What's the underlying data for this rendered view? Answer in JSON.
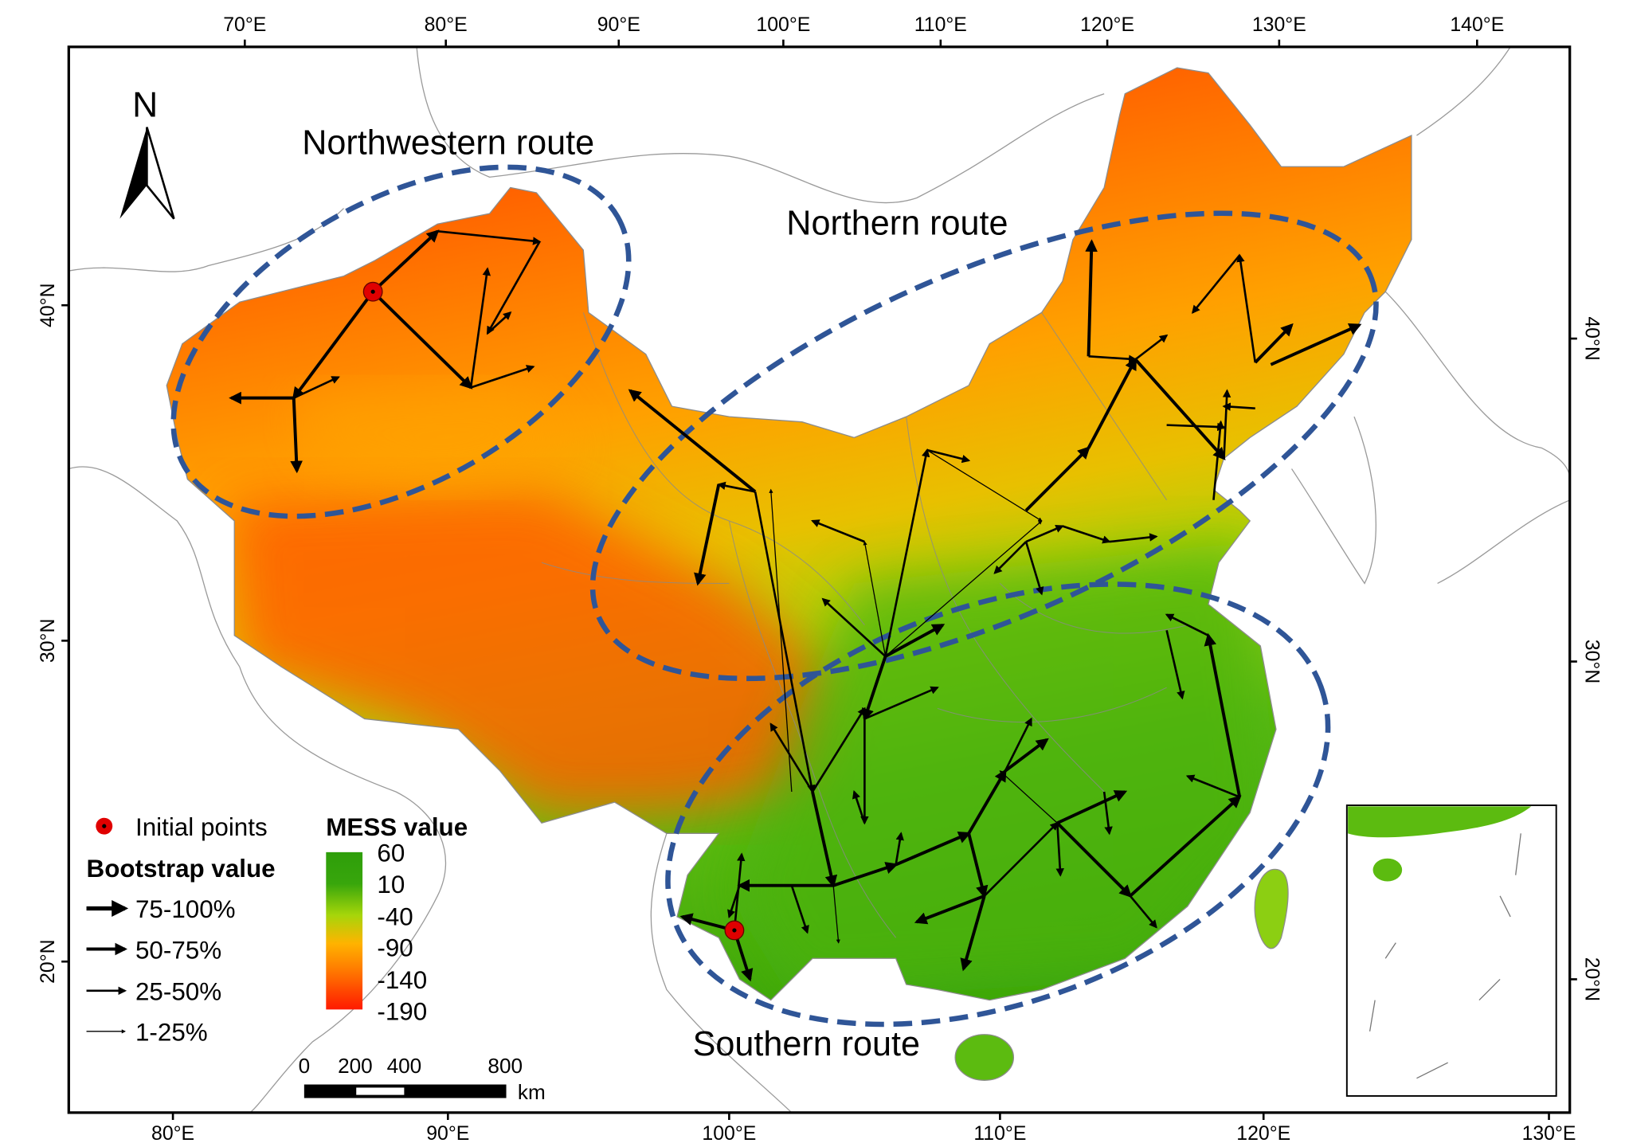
{
  "map": {
    "north_label": "N",
    "routes": {
      "northwestern": "Northwestern route",
      "northern": "Northern route",
      "southern": "Southern route"
    },
    "top_axis_ticks": [
      "70°E",
      "80°E",
      "90°E",
      "100°E",
      "110°E",
      "120°E",
      "130°E",
      "140°E"
    ],
    "bottom_axis_ticks": [
      "80°E",
      "90°E",
      "100°E",
      "110°E",
      "120°E",
      "130°E"
    ],
    "left_axis_ticks": [
      "40°N",
      "30°N",
      "20°N"
    ],
    "right_axis_ticks": [
      "40°N",
      "30°N",
      "20°N"
    ]
  },
  "legend": {
    "initial_points": "Initial points",
    "bootstrap_title": "Bootstrap value",
    "bootstrap_classes": [
      "75-100%",
      "50-75%",
      "25-50%",
      "1-25%"
    ],
    "mess_title": "MESS value",
    "mess_ticks": [
      "60",
      "10",
      "-40",
      "-90",
      "-140",
      "-190"
    ]
  },
  "scale_bar": {
    "ticks": [
      "0",
      "200",
      "400",
      "800"
    ],
    "unit": "km"
  },
  "colors": {
    "route_ellipse": "#2f5597",
    "initial_point": "#e00000",
    "mess_high": "#2e9e0a",
    "mess_mid": "#a6d60a",
    "mess_low_mid": "#ffb300",
    "mess_low": "#ff1a00",
    "boundary": "#8c8c8c"
  }
}
